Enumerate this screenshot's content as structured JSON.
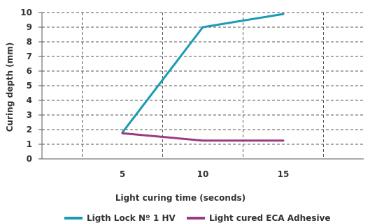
{
  "chart_data": {
    "type": "line",
    "x": [
      5,
      10,
      15
    ],
    "xlabel": "Light curing time (seconds)",
    "ylabel": "Curing depth (mm)",
    "xlim": [
      0,
      20
    ],
    "ylim": [
      0,
      10
    ],
    "xticks": [
      "5",
      "10",
      "15"
    ],
    "yticks": [
      "0",
      "1",
      "2",
      "3",
      "4",
      "5",
      "6",
      "7",
      "8",
      "9",
      "10"
    ],
    "grid": true,
    "legend_position": "bottom",
    "series": [
      {
        "name": "Ligth Lock Nº 1 HV",
        "values": [
          1.8,
          9.0,
          9.9
        ],
        "color": "#1a9bb3"
      },
      {
        "name": "Light cured ECA Adhesive",
        "values": [
          1.75,
          1.25,
          1.25
        ],
        "color": "#9a3a84"
      }
    ]
  }
}
